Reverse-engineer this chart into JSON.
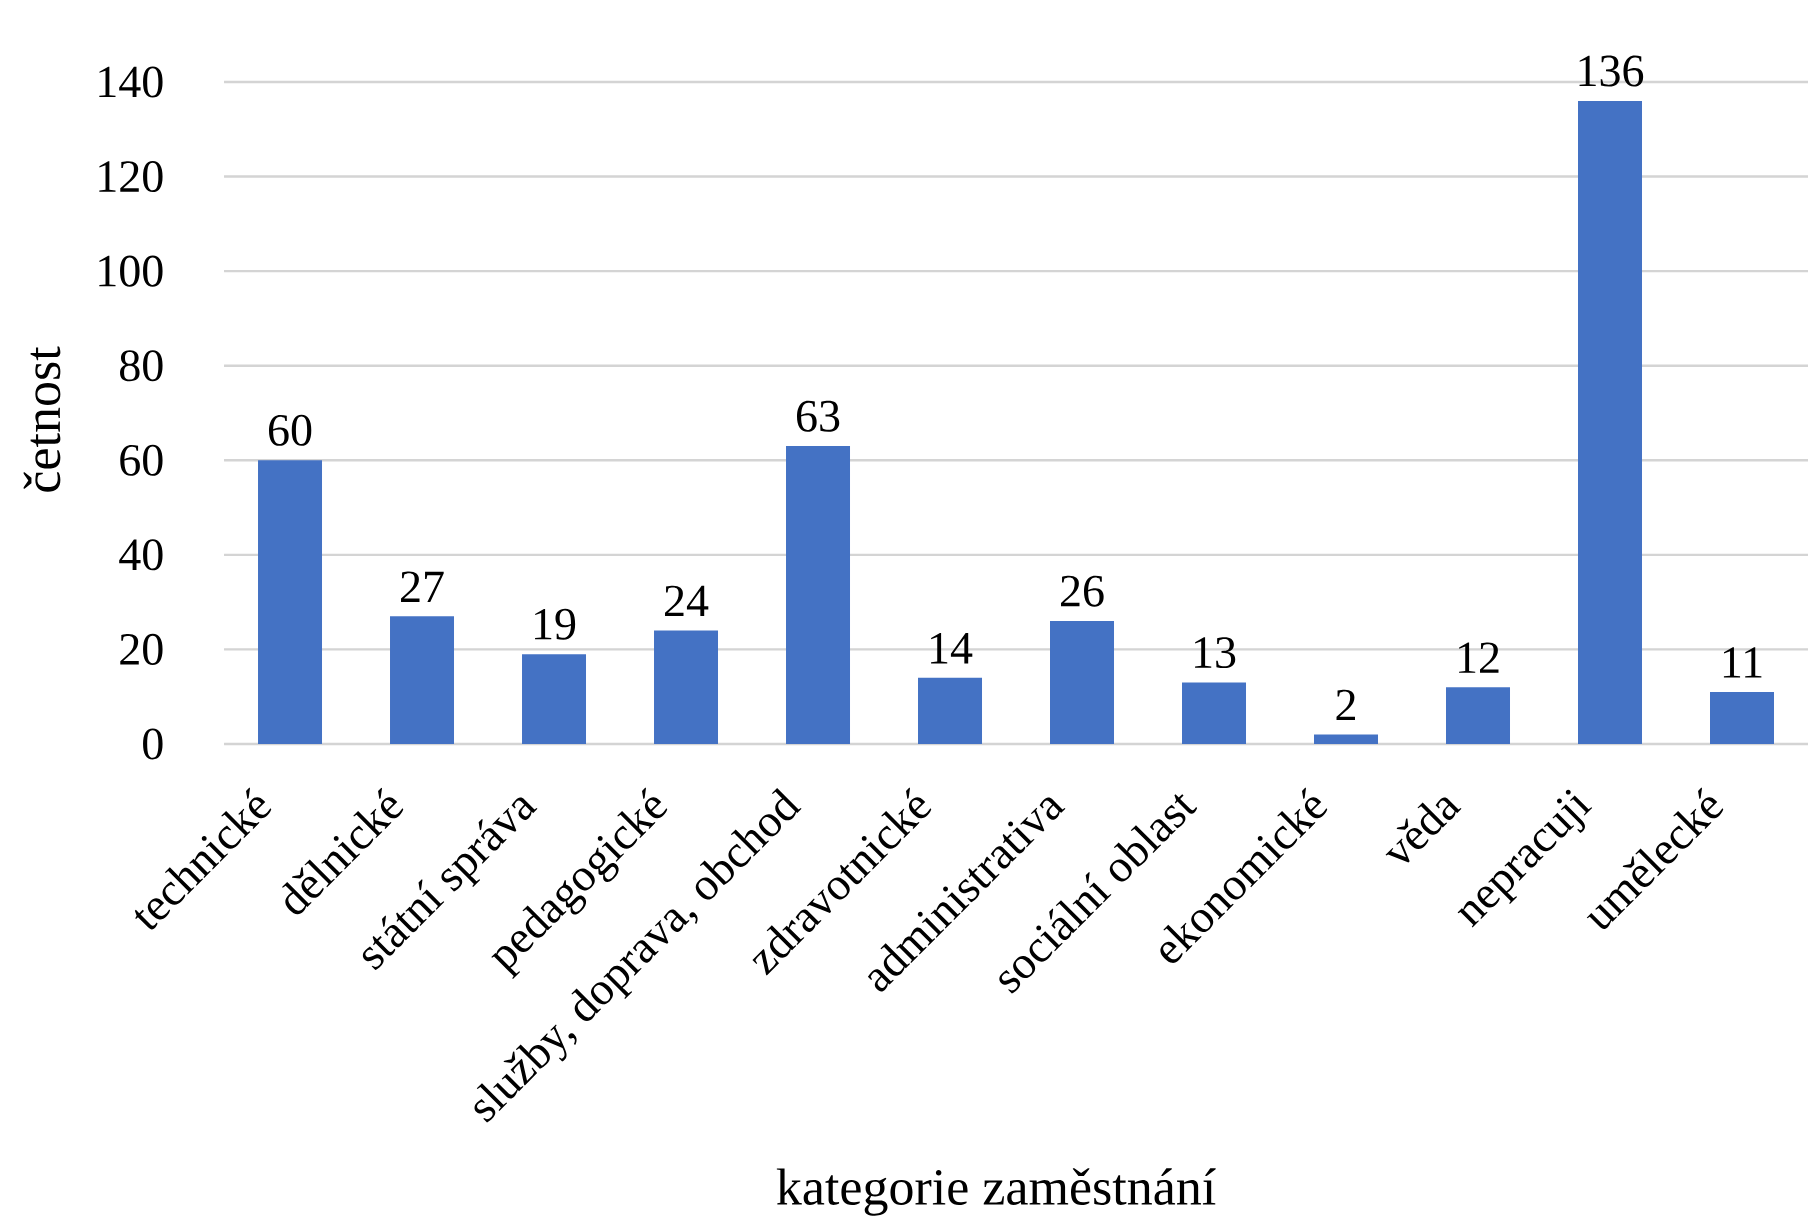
{
  "chart_data": {
    "type": "bar",
    "xlabel": "kategorie zaměstnání",
    "ylabel": "četnost",
    "categories": [
      "technické",
      "dělnické",
      "státní správa",
      "pedagogické",
      "služby, doprava, obchod",
      "zdravotnické",
      "administrativa",
      "sociální oblast",
      "ekonomické",
      "věda",
      "nepracuji",
      "umělecké"
    ],
    "values": [
      60,
      27,
      19,
      24,
      63,
      14,
      26,
      13,
      2,
      12,
      136,
      11
    ],
    "color": "#4472c4",
    "ylim": [
      0,
      140
    ],
    "yticks": [
      0,
      20,
      40,
      60,
      80,
      100,
      120,
      140
    ],
    "grid": "y",
    "data_labels": true
  }
}
